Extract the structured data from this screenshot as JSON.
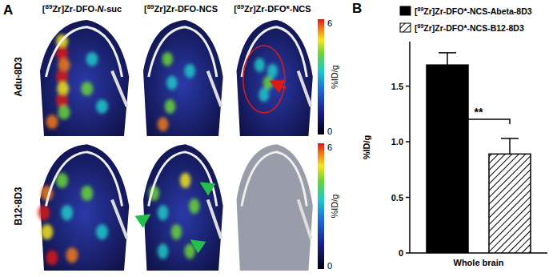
{
  "panel_a": {
    "label": "A",
    "columns": [
      "[89Zr]Zr-DFO-N-suc",
      "[89Zr]Zr-DFO-NCS",
      "[89Zr]Zr-DFO*-NCS"
    ],
    "rows": [
      "Adu-8D3",
      "B12-8D3"
    ],
    "colorbar": {
      "max": 6,
      "min": 0,
      "label": "%ID/g"
    }
  },
  "panel_b": {
    "label": "B"
  },
  "chart_data": {
    "type": "bar",
    "y_label": "%ID/g",
    "categories": [
      "Whole brain"
    ],
    "series": [
      {
        "name": "[89Zr]Zr-DFO*-NCS-Abeta-8D3",
        "color": "#000000",
        "values": [
          1.69
        ],
        "errors": [
          0.11
        ]
      },
      {
        "name": "[89Zr]Zr-DFO*-NCS-B12-8D3",
        "color": "#ffffff",
        "values": [
          0.89
        ],
        "errors": [
          0.14
        ]
      }
    ],
    "ylim": [
      0,
      1.9
    ],
    "yticks": [
      0,
      0.5,
      {
        "value": 1,
        "label": "1.0"
      },
      1.5
    ],
    "legend": "top",
    "annotation": "**"
  }
}
